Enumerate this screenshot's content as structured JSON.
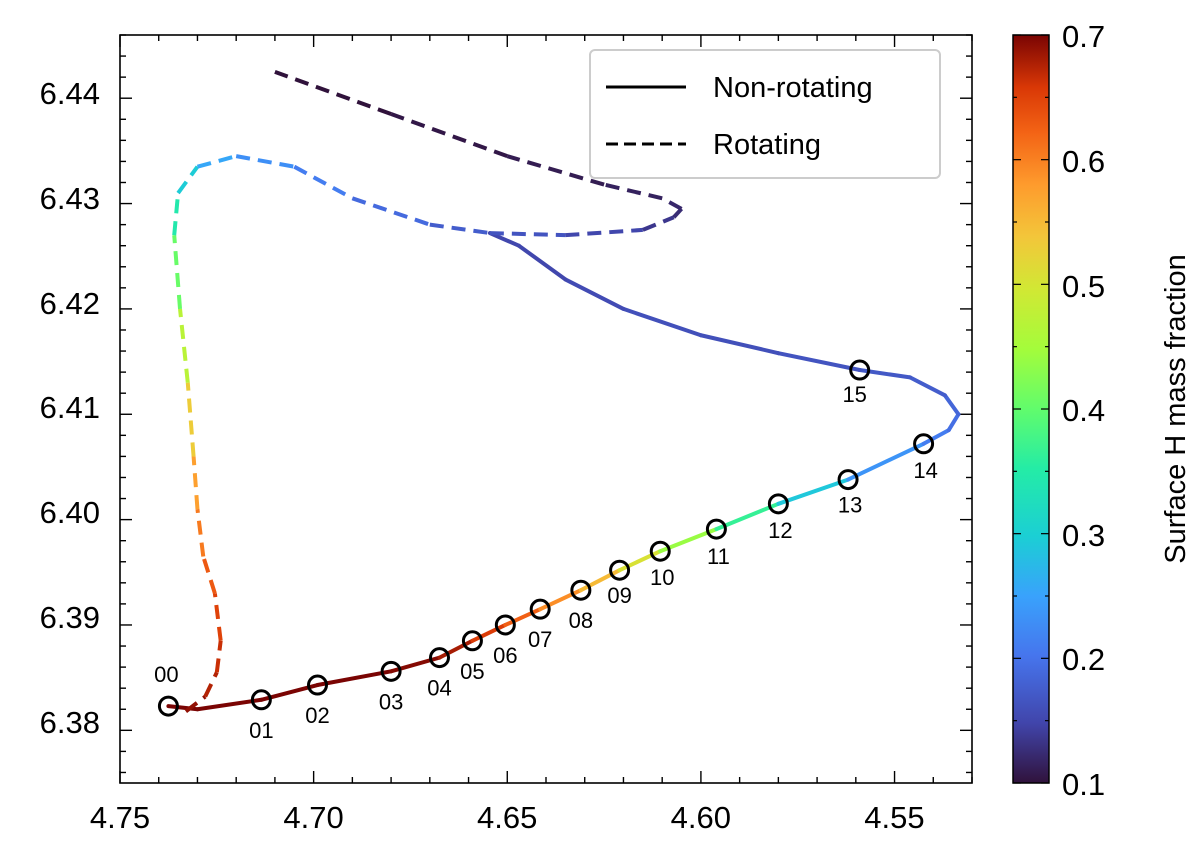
{
  "chart_data": {
    "type": "line",
    "xlim": [
      4.75,
      4.53
    ],
    "ylim": [
      6.375,
      6.446
    ],
    "x_axis_inverted": true,
    "xticks": [
      "4.75",
      "4.70",
      "4.65",
      "4.60",
      "4.55"
    ],
    "yticks": [
      "6.38",
      "6.39",
      "6.40",
      "6.41",
      "6.42",
      "6.43",
      "6.44"
    ],
    "xlabel": "",
    "ylabel": "",
    "legend": {
      "position": "top-right",
      "entries": [
        {
          "label": "Non-rotating",
          "style": "solid"
        },
        {
          "label": "Rotating",
          "style": "dashed"
        }
      ]
    },
    "colorbar": {
      "label": "Surface H mass fraction",
      "range": [
        0.1,
        0.7
      ],
      "ticks": [
        "0.1",
        "0.2",
        "0.3",
        "0.4",
        "0.5",
        "0.6",
        "0.7"
      ],
      "colormap": "turbo"
    },
    "series": [
      {
        "name": "Non-rotating",
        "style": "solid",
        "points": [
          [
            4.7375,
            6.3823,
            0.7
          ],
          [
            4.73,
            6.382,
            0.7
          ],
          [
            4.7135,
            6.3829,
            0.7
          ],
          [
            4.699,
            6.3843,
            0.7
          ],
          [
            4.68,
            6.3856,
            0.7
          ],
          [
            4.6675,
            6.3869,
            0.69
          ],
          [
            4.659,
            6.3885,
            0.67
          ],
          [
            4.6505,
            6.39,
            0.64
          ],
          [
            4.6415,
            6.3915,
            0.61
          ],
          [
            4.631,
            6.3933,
            0.57
          ],
          [
            4.621,
            6.3952,
            0.53
          ],
          [
            4.6105,
            6.397,
            0.48
          ],
          [
            4.596,
            6.3991,
            0.4
          ],
          [
            4.58,
            6.4015,
            0.33
          ],
          [
            4.562,
            6.4038,
            0.25
          ],
          [
            4.5425,
            6.4072,
            0.22
          ],
          [
            4.536,
            6.4085,
            0.2
          ],
          [
            4.5335,
            6.41,
            0.19
          ],
          [
            4.537,
            6.4118,
            0.18
          ],
          [
            4.546,
            6.4135,
            0.17
          ],
          [
            4.559,
            6.4142,
            0.17
          ],
          [
            4.58,
            6.4158,
            0.16
          ],
          [
            4.6,
            6.4175,
            0.16
          ],
          [
            4.62,
            6.42,
            0.16
          ],
          [
            4.635,
            6.4228,
            0.15
          ],
          [
            4.647,
            6.426,
            0.15
          ],
          [
            4.6545,
            6.4272,
            0.15
          ]
        ]
      },
      {
        "name": "Rotating",
        "style": "dashed",
        "points": [
          [
            4.733,
            6.3818,
            0.7
          ],
          [
            4.728,
            6.3832,
            0.68
          ],
          [
            4.725,
            6.3855,
            0.67
          ],
          [
            4.724,
            6.3885,
            0.66
          ],
          [
            4.7255,
            6.393,
            0.64
          ],
          [
            4.7285,
            6.3965,
            0.62
          ],
          [
            4.73,
            6.401,
            0.59
          ],
          [
            4.731,
            6.406,
            0.56
          ],
          [
            4.7325,
            6.413,
            0.5
          ],
          [
            4.7345,
            6.42,
            0.44
          ],
          [
            4.736,
            6.427,
            0.37
          ],
          [
            4.735,
            6.431,
            0.32
          ],
          [
            4.73,
            6.4335,
            0.27
          ],
          [
            4.72,
            6.4345,
            0.24
          ],
          [
            4.705,
            6.4335,
            0.22
          ],
          [
            4.69,
            6.4305,
            0.2
          ],
          [
            4.67,
            6.428,
            0.18
          ],
          [
            4.6545,
            6.4272,
            0.17
          ],
          [
            4.635,
            6.427,
            0.16
          ],
          [
            4.615,
            6.4275,
            0.14
          ],
          [
            4.607,
            6.4287,
            0.13
          ],
          [
            4.605,
            6.4295,
            0.12
          ],
          [
            4.61,
            6.4305,
            0.12
          ],
          [
            4.625,
            6.4318,
            0.11
          ],
          [
            4.65,
            6.4345,
            0.11
          ],
          [
            4.68,
            6.4385,
            0.1
          ],
          [
            4.71,
            6.4425,
            0.1
          ]
        ]
      }
    ],
    "markers": [
      {
        "label": "00",
        "x": 4.7375,
        "y": 6.3823
      },
      {
        "label": "01",
        "x": 4.7135,
        "y": 6.3829
      },
      {
        "label": "02",
        "x": 4.699,
        "y": 6.3843
      },
      {
        "label": "03",
        "x": 4.68,
        "y": 6.3856
      },
      {
        "label": "04",
        "x": 4.6675,
        "y": 6.3869
      },
      {
        "label": "05",
        "x": 4.659,
        "y": 6.3885
      },
      {
        "label": "06",
        "x": 4.6505,
        "y": 6.39
      },
      {
        "label": "07",
        "x": 4.6415,
        "y": 6.3915
      },
      {
        "label": "08",
        "x": 4.631,
        "y": 6.3933
      },
      {
        "label": "09",
        "x": 4.621,
        "y": 6.3952
      },
      {
        "label": "10",
        "x": 4.6105,
        "y": 6.397
      },
      {
        "label": "11",
        "x": 4.596,
        "y": 6.3991
      },
      {
        "label": "12",
        "x": 4.58,
        "y": 6.4015
      },
      {
        "label": "13",
        "x": 4.562,
        "y": 6.4038
      },
      {
        "label": "14",
        "x": 4.5425,
        "y": 6.4072
      },
      {
        "label": "15",
        "x": 4.559,
        "y": 6.4142
      }
    ]
  }
}
